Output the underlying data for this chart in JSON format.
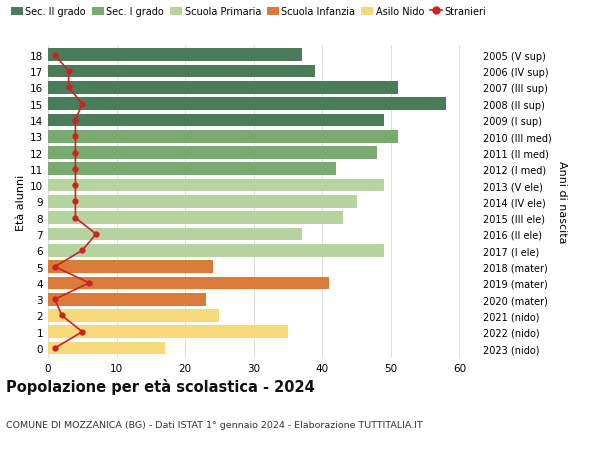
{
  "ages": [
    18,
    17,
    16,
    15,
    14,
    13,
    12,
    11,
    10,
    9,
    8,
    7,
    6,
    5,
    4,
    3,
    2,
    1,
    0
  ],
  "bar_values": [
    37,
    39,
    51,
    58,
    49,
    51,
    48,
    42,
    49,
    45,
    43,
    37,
    49,
    24,
    41,
    23,
    25,
    35,
    17
  ],
  "right_labels": [
    "2005 (V sup)",
    "2006 (IV sup)",
    "2007 (III sup)",
    "2008 (II sup)",
    "2009 (I sup)",
    "2010 (III med)",
    "2011 (II med)",
    "2012 (I med)",
    "2013 (V ele)",
    "2014 (IV ele)",
    "2015 (III ele)",
    "2016 (II ele)",
    "2017 (I ele)",
    "2018 (mater)",
    "2019 (mater)",
    "2020 (mater)",
    "2021 (nido)",
    "2022 (nido)",
    "2023 (nido)"
  ],
  "bar_colors": [
    "#4a7c59",
    "#4a7c59",
    "#4a7c59",
    "#4a7c59",
    "#4a7c59",
    "#7aab6e",
    "#7aab6e",
    "#7aab6e",
    "#b5d4a0",
    "#b5d4a0",
    "#b5d4a0",
    "#b5d4a0",
    "#b5d4a0",
    "#d97b3a",
    "#d97b3a",
    "#d97b3a",
    "#f5d97a",
    "#f5d97a",
    "#f5d97a"
  ],
  "stranieri_values": [
    1,
    3,
    3,
    5,
    4,
    4,
    4,
    4,
    4,
    4,
    4,
    7,
    5,
    1,
    6,
    1,
    2,
    5,
    1
  ],
  "title": "Popolazione per età scolastica - 2024",
  "subtitle": "COMUNE DI MOZZANICA (BG) - Dati ISTAT 1° gennaio 2024 - Elaborazione TUTTITALIA.IT",
  "ylabel": "Età alunni",
  "right_ylabel": "Anni di nascita",
  "xlim": [
    0,
    63
  ],
  "xticks": [
    0,
    10,
    20,
    30,
    40,
    50,
    60
  ],
  "legend_labels": [
    "Sec. II grado",
    "Sec. I grado",
    "Scuola Primaria",
    "Scuola Infanzia",
    "Asilo Nido",
    "Stranieri"
  ],
  "legend_colors": [
    "#4a7c59",
    "#7aab6e",
    "#b5d4a0",
    "#d97b3a",
    "#f5d97a",
    "#cc2222"
  ],
  "bg_color": "#ffffff",
  "grid_color": "#dddddd",
  "bar_height": 0.78
}
